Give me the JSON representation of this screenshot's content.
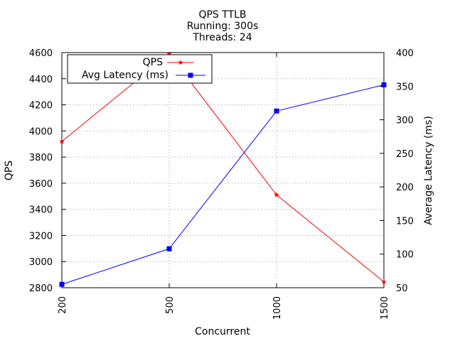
{
  "chart_data": {
    "type": "line",
    "title": "QPS  TTLB",
    "subtitle_lines": [
      "Running: 300s",
      "Threads: 24"
    ],
    "xlabel": "Concurrent",
    "ylabel_left": "QPS",
    "ylabel_right": "Average Latency (ms)",
    "categories": [
      "200",
      "500",
      "1000",
      "1500"
    ],
    "ylim_left": [
      2800,
      4600
    ],
    "yticks_left": [
      2800,
      3000,
      3200,
      3400,
      3600,
      3800,
      4000,
      4200,
      4400,
      4600
    ],
    "ylim_right": [
      50,
      400
    ],
    "yticks_right": [
      50,
      100,
      150,
      200,
      250,
      300,
      350,
      400
    ],
    "grid": true,
    "legend_placement": "top-left",
    "series": [
      {
        "name": "QPS",
        "axis": "left",
        "color": "#ff0000",
        "marker": "star",
        "values": [
          3920,
          4590,
          3510,
          2845
        ]
      },
      {
        "name": "Avg Latency (ms)",
        "axis": "right",
        "color": "#0000ff",
        "marker": "square",
        "values": [
          55,
          108,
          313,
          352
        ]
      }
    ]
  }
}
